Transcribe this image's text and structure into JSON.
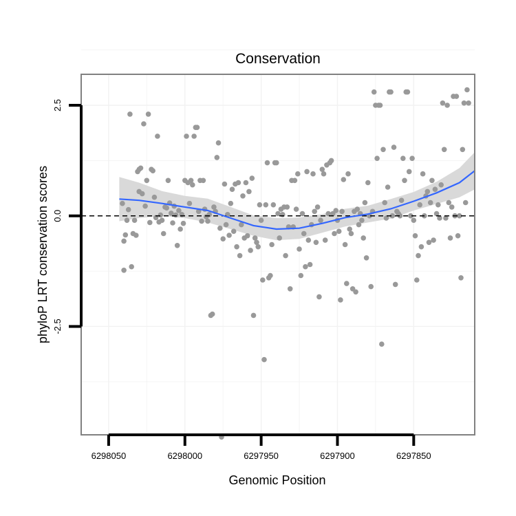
{
  "chart_data": {
    "type": "scatter",
    "title": "Conservation",
    "xlabel": "Genomic Position",
    "ylabel": "phyloP LRT conservation scores",
    "x_reversed": true,
    "xlim": [
      6298068,
      6297810
    ],
    "ylim": [
      -4.95,
      3.2
    ],
    "x_ticks": [
      6298050,
      6298000,
      6297950,
      6297900,
      6297850
    ],
    "x_tick_labels": [
      "6298050",
      "6298000",
      "6297950",
      "6297900",
      "6297850"
    ],
    "y_ticks": [
      2.5,
      0.0,
      -2.5
    ],
    "y_tick_labels": [
      "2.5",
      "0.0",
      "-2.5"
    ],
    "reference_line": {
      "y": 0,
      "style": "dashed",
      "color": "#000000"
    },
    "colors": {
      "points": "#999999",
      "smooth": "#3366ff",
      "ribbon": "#d9d9d9",
      "panel_border": "#808080",
      "grid": "#f2f2f2"
    },
    "points": [
      [
        6298041,
        0.28
      ],
      [
        6298040,
        -0.57
      ],
      [
        6298040,
        -1.23
      ],
      [
        6298039,
        -0.43
      ],
      [
        6298038,
        -0.1
      ],
      [
        6298037,
        0.14
      ],
      [
        6298036,
        2.3
      ],
      [
        6298035,
        -1.15
      ],
      [
        6298034,
        -0.4
      ],
      [
        6298033,
        -0.1
      ],
      [
        6298032,
        -0.44
      ],
      [
        6298031,
        1.0
      ],
      [
        6298030,
        0.55
      ],
      [
        6298030,
        1.05
      ],
      [
        6298029,
        1.08
      ],
      [
        6298028,
        0.5
      ],
      [
        6298027,
        2.08
      ],
      [
        6298026,
        0.22
      ],
      [
        6298025,
        0.8
      ],
      [
        6298024,
        2.3
      ],
      [
        6298023,
        -0.15
      ],
      [
        6298022,
        1.05
      ],
      [
        6298021,
        1.02
      ],
      [
        6298020,
        0.42
      ],
      [
        6298019,
        -0.04
      ],
      [
        6298018,
        1.8
      ],
      [
        6298017,
        -0.14
      ],
      [
        6298016,
        0.02
      ],
      [
        6298015,
        -0.1
      ],
      [
        6298014,
        -0.4
      ],
      [
        6298013,
        0.2
      ],
      [
        6298012,
        0.18
      ],
      [
        6298011,
        0.8
      ],
      [
        6298010,
        0.29
      ],
      [
        6298009,
        0.06
      ],
      [
        6298008,
        -0.16
      ],
      [
        6298007,
        0.22
      ],
      [
        6298006,
        0.02
      ],
      [
        6298005,
        -0.67
      ],
      [
        6298004,
        0.12
      ],
      [
        6298003,
        -0.3
      ],
      [
        6298002,
        0.03
      ],
      [
        6298001,
        -0.17
      ],
      [
        6298000,
        0.8
      ],
      [
        6297999,
        1.8
      ],
      [
        6297998,
        0.75
      ],
      [
        6297997,
        0.28
      ],
      [
        6297996,
        0.8
      ],
      [
        6297995,
        0.7
      ],
      [
        6297994,
        1.8
      ],
      [
        6297993,
        2.0
      ],
      [
        6297992,
        2.0
      ],
      [
        6297991,
        0.1
      ],
      [
        6297990,
        0.8
      ],
      [
        6297989,
        -0.12
      ],
      [
        6297988,
        0.8
      ],
      [
        6297987,
        0.15
      ],
      [
        6297986,
        -0.02
      ],
      [
        6297985,
        -0.12
      ],
      [
        6297984,
        0.03
      ],
      [
        6297983,
        -2.25
      ],
      [
        6297982,
        -2.22
      ],
      [
        6297981,
        0.2
      ],
      [
        6297980,
        0.1
      ],
      [
        6297979,
        1.32
      ],
      [
        6297978,
        1.65
      ],
      [
        6297977,
        -0.28
      ],
      [
        6297976,
        -5.0
      ],
      [
        6297975,
        -0.52
      ],
      [
        6297974,
        0.72
      ],
      [
        6297973,
        -0.2
      ],
      [
        6297972,
        0.03
      ],
      [
        6297971,
        -0.44
      ],
      [
        6297970,
        0.28
      ],
      [
        6297969,
        0.6
      ],
      [
        6297968,
        -0.35
      ],
      [
        6297967,
        0.72
      ],
      [
        6297966,
        -0.7
      ],
      [
        6297965,
        0.75
      ],
      [
        6297964,
        -0.9
      ],
      [
        6297963,
        -0.2
      ],
      [
        6297962,
        0.45
      ],
      [
        6297961,
        -0.5
      ],
      [
        6297960,
        0.75
      ],
      [
        6297959,
        -0.45
      ],
      [
        6297958,
        0.55
      ],
      [
        6297957,
        -0.78
      ],
      [
        6297956,
        0.85
      ],
      [
        6297955,
        -2.25
      ],
      [
        6297954,
        -0.5
      ],
      [
        6297953,
        -0.6
      ],
      [
        6297952,
        -0.7
      ],
      [
        6297951,
        0.25
      ],
      [
        6297950,
        -0.1
      ],
      [
        6297949,
        -1.45
      ],
      [
        6297948,
        -3.25
      ],
      [
        6297947,
        0.25
      ],
      [
        6297946,
        1.2
      ],
      [
        6297945,
        -1.4
      ],
      [
        6297944,
        -1.35
      ],
      [
        6297943,
        -0.65
      ],
      [
        6297942,
        0.25
      ],
      [
        6297941,
        1.2
      ],
      [
        6297940,
        1.2
      ],
      [
        6297939,
        0.05
      ],
      [
        6297938,
        -0.5
      ],
      [
        6297937,
        0.15
      ],
      [
        6297936,
        0.03
      ],
      [
        6297935,
        0.2
      ],
      [
        6297934,
        -0.9
      ],
      [
        6297933,
        0.2
      ],
      [
        6297932,
        -0.25
      ],
      [
        6297931,
        -1.65
      ],
      [
        6297930,
        0.8
      ],
      [
        6297929,
        -0.25
      ],
      [
        6297928,
        0.8
      ],
      [
        6297927,
        0.15
      ],
      [
        6297926,
        0.95
      ],
      [
        6297925,
        -0.75
      ],
      [
        6297924,
        -1.35
      ],
      [
        6297923,
        0.05
      ],
      [
        6297922,
        -0.4
      ],
      [
        6297921,
        -1.15
      ],
      [
        6297920,
        1.0
      ],
      [
        6297919,
        -0.55
      ],
      [
        6297918,
        -1.1
      ],
      [
        6297917,
        -0.2
      ],
      [
        6297916,
        0.95
      ],
      [
        6297915,
        0.1
      ],
      [
        6297914,
        -0.6
      ],
      [
        6297913,
        0.2
      ],
      [
        6297912,
        -1.83
      ],
      [
        6297911,
        -0.1
      ],
      [
        6297910,
        1.05
      ],
      [
        6297909,
        0.95
      ],
      [
        6297908,
        -0.55
      ],
      [
        6297907,
        1.15
      ],
      [
        6297906,
        0.05
      ],
      [
        6297905,
        1.2
      ],
      [
        6297904,
        1.25
      ],
      [
        6297903,
        0.05
      ],
      [
        6297902,
        -0.4
      ],
      [
        6297901,
        0.12
      ],
      [
        6297900,
        -0.1
      ],
      [
        6297899,
        -0.35
      ],
      [
        6297898,
        -1.9
      ],
      [
        6297897,
        0.1
      ],
      [
        6297896,
        0.82
      ],
      [
        6297895,
        -0.65
      ],
      [
        6297894,
        -1.53
      ],
      [
        6297893,
        0.95
      ],
      [
        6297892,
        -0.3
      ],
      [
        6297891,
        -0.4
      ],
      [
        6297890,
        -1.65
      ],
      [
        6297889,
        0.1
      ],
      [
        6297888,
        -1.72
      ],
      [
        6297887,
        0.15
      ],
      [
        6297886,
        -0.2
      ],
      [
        6297885,
        0.05
      ],
      [
        6297884,
        -0.1
      ],
      [
        6297883,
        -0.5
      ],
      [
        6297882,
        0.3
      ],
      [
        6297881,
        -0.95
      ],
      [
        6297880,
        0.75
      ],
      [
        6297879,
        0.0
      ],
      [
        6297878,
        -1.6
      ],
      [
        6297877,
        0.1
      ],
      [
        6297876,
        2.8
      ],
      [
        6297875,
        2.5
      ],
      [
        6297874,
        1.3
      ],
      [
        6297873,
        2.5
      ],
      [
        6297872,
        2.5
      ],
      [
        6297871,
        -2.9
      ],
      [
        6297870,
        1.5
      ],
      [
        6297869,
        0.3
      ],
      [
        6297868,
        -0.05
      ],
      [
        6297867,
        0.65
      ],
      [
        6297866,
        2.8
      ],
      [
        6297865,
        2.8
      ],
      [
        6297864,
        0.0
      ],
      [
        6297863,
        1.55
      ],
      [
        6297862,
        -1.55
      ],
      [
        6297861,
        0.1
      ],
      [
        6297860,
        0.05
      ],
      [
        6297859,
        0.0
      ],
      [
        6297858,
        0.35
      ],
      [
        6297857,
        1.3
      ],
      [
        6297856,
        0.8
      ],
      [
        6297855,
        2.8
      ],
      [
        6297854,
        2.8
      ],
      [
        6297853,
        1.0
      ],
      [
        6297852,
        0.0
      ],
      [
        6297851,
        1.3
      ],
      [
        6297850,
        -0.1
      ],
      [
        6297849,
        -0.45
      ],
      [
        6297848,
        -1.45
      ],
      [
        6297847,
        -0.9
      ],
      [
        6297846,
        0.25
      ],
      [
        6297845,
        -0.7
      ],
      [
        6297844,
        0.95
      ],
      [
        6297843,
        0.0
      ],
      [
        6297842,
        0.45
      ],
      [
        6297841,
        0.55
      ],
      [
        6297840,
        -0.6
      ],
      [
        6297839,
        0.3
      ],
      [
        6297838,
        0.8
      ],
      [
        6297837,
        -0.55
      ],
      [
        6297836,
        0.6
      ],
      [
        6297835,
        0.05
      ],
      [
        6297834,
        0.25
      ],
      [
        6297833,
        -0.05
      ],
      [
        6297832,
        0.7
      ],
      [
        6297831,
        2.55
      ],
      [
        6297830,
        1.5
      ],
      [
        6297829,
        -0.05
      ],
      [
        6297828,
        2.5
      ],
      [
        6297827,
        0.3
      ],
      [
        6297826,
        -0.5
      ],
      [
        6297825,
        0.2
      ],
      [
        6297824,
        2.7
      ],
      [
        6297823,
        0.0
      ],
      [
        6297822,
        2.7
      ],
      [
        6297821,
        -0.45
      ],
      [
        6297820,
        0.0
      ],
      [
        6297819,
        -1.4
      ],
      [
        6297818,
        1.5
      ],
      [
        6297817,
        2.55
      ],
      [
        6297816,
        0.3
      ],
      [
        6297815,
        2.85
      ],
      [
        6297814,
        2.55
      ]
    ],
    "smooth": {
      "x": [
        6298043,
        6298030,
        6298015,
        6298000,
        6297985,
        6297970,
        6297955,
        6297940,
        6297925,
        6297910,
        6297895,
        6297880,
        6297865,
        6297850,
        6297835,
        6297820,
        6297810
      ],
      "y": [
        0.38,
        0.35,
        0.28,
        0.2,
        0.12,
        -0.05,
        -0.22,
        -0.3,
        -0.28,
        -0.17,
        -0.04,
        0.04,
        0.16,
        0.33,
        0.52,
        0.75,
        1.02
      ],
      "ci_lower": [
        -0.12,
        -0.05,
        0.0,
        -0.05,
        -0.15,
        -0.3,
        -0.45,
        -0.55,
        -0.52,
        -0.38,
        -0.24,
        -0.15,
        -0.06,
        0.12,
        0.27,
        0.42,
        0.6
      ],
      "ci_upper": [
        0.88,
        0.75,
        0.56,
        0.45,
        0.39,
        0.2,
        0.01,
        -0.05,
        -0.04,
        0.04,
        0.16,
        0.23,
        0.38,
        0.54,
        0.77,
        1.08,
        1.44
      ]
    }
  }
}
